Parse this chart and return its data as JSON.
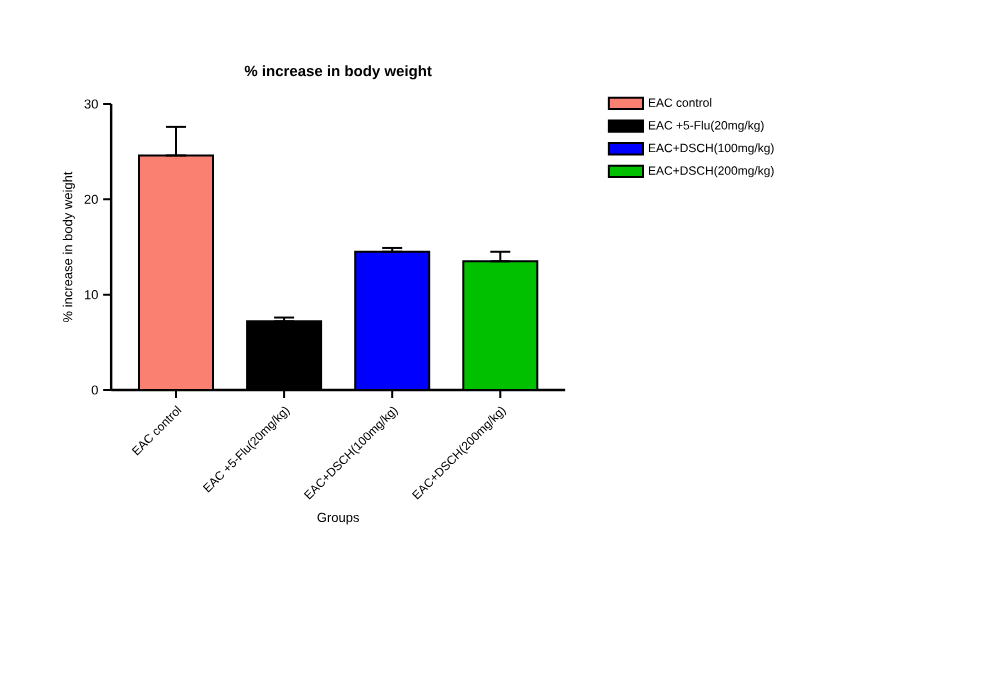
{
  "chart_data": {
    "type": "bar",
    "title": "% increase in body weight",
    "xlabel": "Groups",
    "ylabel": "% increase in body weight",
    "categories": [
      "EAC control",
      "EAC +5-Flu(20mg/kg)",
      "EAC+DSCH(100mg/kg)",
      "EAC+DSCH(200mg/kg)"
    ],
    "series": [
      {
        "name": "EAC control",
        "color": "#fa8072",
        "values": [
          24.6,
          null,
          null,
          null
        ],
        "errors": [
          [
            24.6,
            27.6
          ],
          null,
          null,
          null
        ]
      },
      {
        "name": "EAC +5-Flu(20mg/kg)",
        "color": "#000000",
        "values": [
          null,
          7.2,
          null,
          null
        ],
        "errors": [
          null,
          [
            7.2,
            7.6
          ],
          null,
          null
        ]
      },
      {
        "name": "EAC+DSCH(100mg/kg)",
        "color": "#0000ff",
        "values": [
          null,
          null,
          14.5,
          null
        ],
        "errors": [
          null,
          null,
          [
            14.5,
            14.9
          ],
          null
        ]
      },
      {
        "name": "EAC+DSCH(200mg/kg)",
        "color": "#00c000",
        "values": [
          null,
          null,
          null,
          13.5
        ],
        "errors": [
          null,
          null,
          null,
          [
            13.5,
            14.5
          ]
        ]
      }
    ],
    "ylim": [
      0,
      30
    ],
    "yticks": [
      0,
      10,
      20,
      30
    ],
    "legend": "top right"
  }
}
